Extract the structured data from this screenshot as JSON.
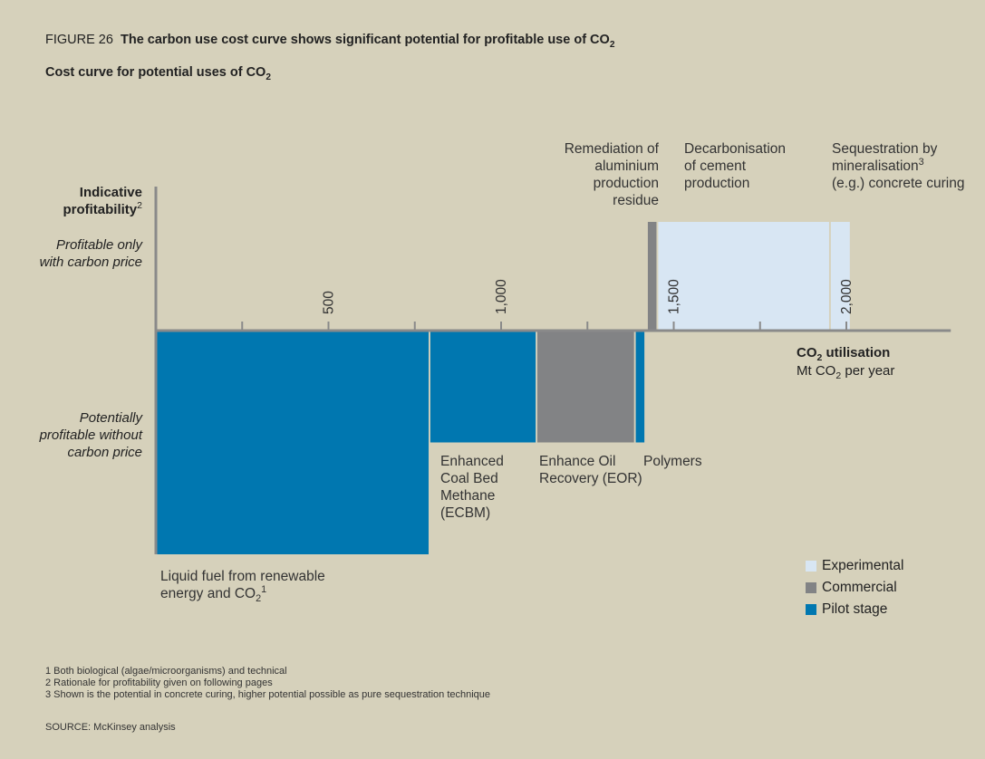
{
  "figure_number": "FIGURE 26",
  "figure_title": "The carbon use cost curve shows significant potential for profitable use of CO",
  "figure_title_sub": "2",
  "subtitle": "Cost curve for potential uses of CO",
  "subtitle_sub": "2",
  "y_axis": {
    "heading": "Indicative profitability",
    "heading_sup": "2",
    "upper": "Profitable only with carbon price",
    "lower": "Potentially profitable without carbon price"
  },
  "x_axis": {
    "title_prefix": "CO",
    "title_sub": "2",
    "title_suffix": " utilisation",
    "unit_prefix": "Mt CO",
    "unit_sub": "2",
    "unit_suffix": " per year"
  },
  "legend": {
    "experimental": "Experimental",
    "commercial": "Commercial",
    "pilot": "Pilot stage"
  },
  "colors": {
    "pilot": "#0077b0",
    "commercial": "#828385",
    "experimental": "#d8e6f3",
    "background": "#d6d1bb"
  },
  "bar_labels": {
    "liquid_fuel_1": "Liquid fuel from renewable",
    "liquid_fuel_2": "energy and CO",
    "liquid_fuel_sub": "2",
    "liquid_fuel_sup": "1",
    "ecbm": "Enhanced Coal Bed Methane (ECBM)",
    "eor": "Enhance Oil Recovery (EOR)",
    "polymers": "Polymers",
    "aluminium": "Remediation of aluminium production residue",
    "cement": "Decarbonisation of cement production",
    "mineral_1": "Sequestration by mineralisation",
    "mineral_sup": "3",
    "mineral_2": "(e.g.) concrete curing"
  },
  "notes": [
    "1 Both biological (algae/microorganisms) and technical",
    "2 Rationale for profitability given on following pages",
    "3 Shown is the potential in concrete curing, higher potential possible as pure sequestration technique"
  ],
  "source": "SOURCE: McKinsey analysis",
  "chart_data": {
    "type": "bar",
    "title": "Cost curve for potential uses of CO2",
    "xlabel": "CO2 utilisation Mt CO2 per year",
    "ylabel": "Indicative profitability",
    "xlim": [
      0,
      2250
    ],
    "x_ticks": [
      250,
      500,
      750,
      1000,
      1250,
      1500,
      1750,
      2000
    ],
    "x_tick_labels": [
      {
        "x": 500,
        "label": "500"
      },
      {
        "x": 1000,
        "label": "1,000"
      },
      {
        "x": 1500,
        "label": "1,500"
      },
      {
        "x": 2000,
        "label": "2,000"
      }
    ],
    "ylim": [
      -1.0,
      0.5
    ],
    "bars": [
      {
        "name": "Liquid fuel from renewable energy and CO2",
        "x0": 0,
        "x1": 790,
        "value": -1.0,
        "stage": "pilot"
      },
      {
        "name": "Enhanced Coal Bed Methane (ECBM)",
        "x0": 795,
        "x1": 1100,
        "value": -0.5,
        "stage": "pilot"
      },
      {
        "name": "Enhance Oil Recovery (EOR)",
        "x0": 1105,
        "x1": 1385,
        "value": -0.5,
        "stage": "commercial"
      },
      {
        "name": "Polymers",
        "x0": 1390,
        "x1": 1415,
        "value": -0.5,
        "stage": "pilot"
      },
      {
        "name": "Remediation of aluminium production residue",
        "x0": 1425,
        "x1": 1450,
        "value": 0.5,
        "stage": "commercial"
      },
      {
        "name": "Decarbonisation of cement production",
        "x0": 1455,
        "x1": 1950,
        "value": 0.5,
        "stage": "experimental"
      },
      {
        "name": "Sequestration by mineralisation (e.g.) concrete curing",
        "x0": 1955,
        "x1": 2010,
        "value": 0.5,
        "stage": "experimental"
      }
    ]
  }
}
